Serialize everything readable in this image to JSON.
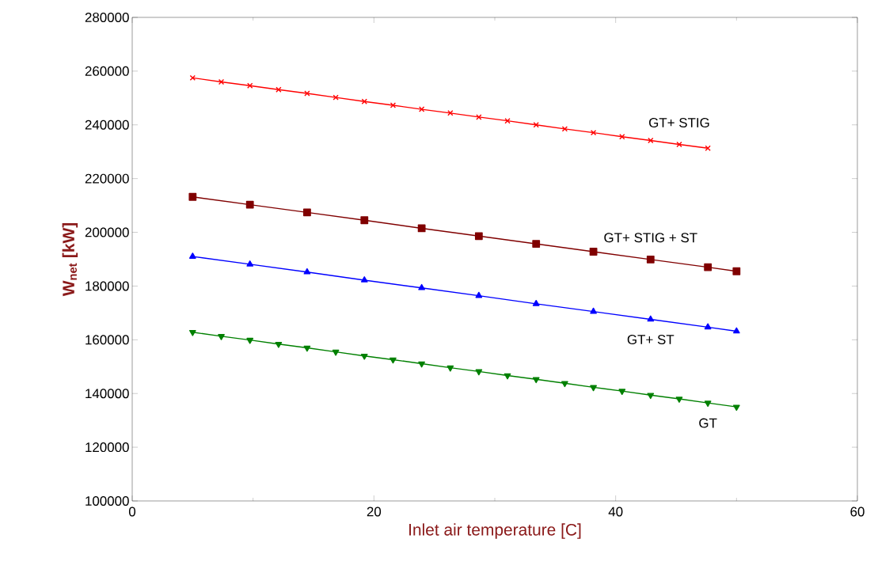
{
  "chart_data": {
    "type": "line",
    "xlabel": "Inlet air temperature [C]",
    "ylabel": "W$_{net}$  [kW]",
    "xlim": [
      0,
      60
    ],
    "ylim": [
      100000,
      280000
    ],
    "xticks": [
      0,
      20,
      40,
      60
    ],
    "yticks": [
      100000,
      120000,
      140000,
      160000,
      180000,
      200000,
      220000,
      240000,
      260000,
      280000
    ],
    "grid": false,
    "legend": false,
    "series": [
      {
        "name": "GT+ STIG",
        "color": "#ff0000",
        "marker": "cross",
        "x": [
          5,
          7.37,
          9.74,
          12.11,
          14.47,
          16.84,
          19.21,
          21.58,
          23.95,
          26.32,
          28.68,
          31.05,
          33.42,
          35.79,
          38.16,
          40.53,
          42.89,
          45.26,
          47.63
        ],
        "values": [
          257500,
          256000,
          254600,
          253100,
          251700,
          250200,
          248700,
          247300,
          245800,
          244400,
          242900,
          241500,
          240000,
          238500,
          237100,
          235600,
          234200,
          232700,
          231300
        ]
      },
      {
        "name": "GT+ STIG + ST",
        "color": "#800000",
        "marker": "square",
        "x": [
          5,
          9.74,
          14.47,
          19.21,
          23.95,
          28.68,
          33.42,
          38.16,
          42.89,
          47.63,
          50
        ],
        "values": [
          213200,
          210300,
          207400,
          204500,
          201500,
          198600,
          195700,
          192800,
          189900,
          187000,
          185500
        ]
      },
      {
        "name": "GT+ ST",
        "color": "#0000ff",
        "marker": "triangle",
        "x": [
          5,
          9.74,
          14.47,
          19.21,
          23.95,
          28.68,
          33.42,
          38.16,
          42.89,
          47.63,
          50
        ],
        "values": [
          191000,
          188100,
          185200,
          182200,
          179300,
          176400,
          173400,
          170500,
          167600,
          164700,
          163200
        ]
      },
      {
        "name": "GT",
        "color": "#008000",
        "marker": "triangle-down",
        "x": [
          5,
          7.37,
          9.74,
          12.11,
          14.47,
          16.84,
          19.21,
          21.58,
          23.95,
          26.32,
          28.68,
          31.05,
          33.42,
          35.79,
          38.16,
          40.53,
          42.89,
          45.26,
          47.63,
          50
        ],
        "values": [
          162800,
          161300,
          159900,
          158400,
          157000,
          155500,
          154000,
          152600,
          151100,
          149600,
          148200,
          146700,
          145300,
          143800,
          142300,
          140900,
          139400,
          138000,
          136500,
          135000
        ]
      }
    ]
  }
}
